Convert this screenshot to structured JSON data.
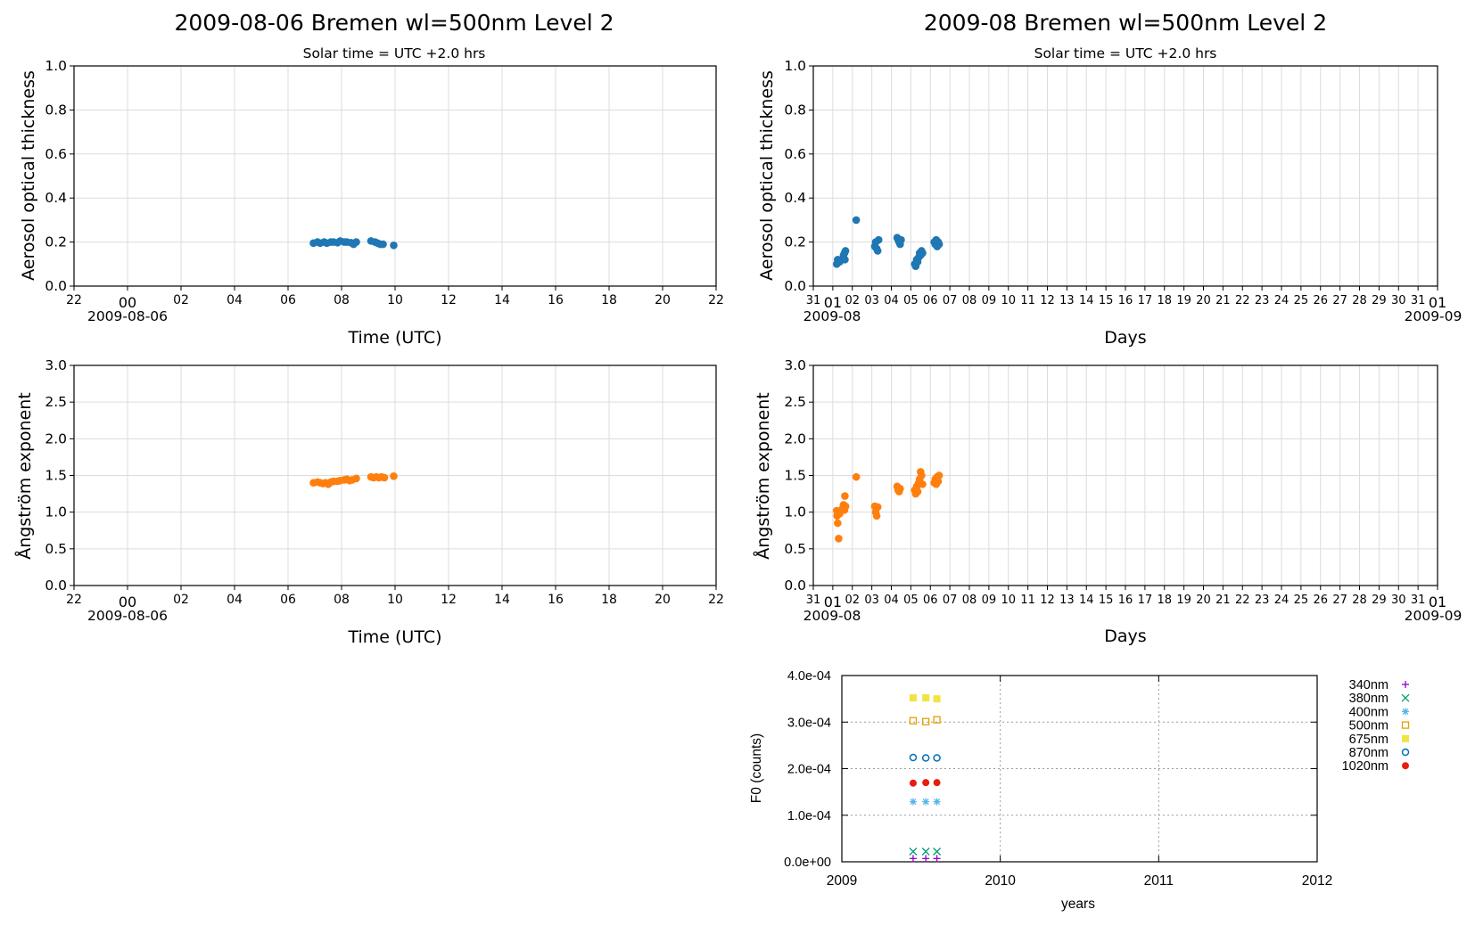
{
  "chart_data": [
    {
      "id": "aot_day",
      "type": "scatter",
      "title": "2009-08-06  Bremen  wl=500nm  Level 2",
      "subtitle": "Solar time = UTC +2.0 hrs",
      "xlabel": "Time (UTC)",
      "ylabel": "Aerosol optical thickness",
      "x_tick_labels": [
        "22",
        "00",
        "02",
        "04",
        "06",
        "08",
        "10",
        "12",
        "14",
        "16",
        "18",
        "20",
        "22"
      ],
      "x_secondary_label": "2009-08-06",
      "xlim_hours": [
        -2,
        22
      ],
      "ylim": [
        0,
        1.0
      ],
      "y_ticks": [
        "0.0",
        "0.2",
        "0.4",
        "0.6",
        "0.8",
        "1.0"
      ],
      "grid": true,
      "color": "#1f77b4",
      "series": [
        {
          "x": [
            6.95,
            7.1,
            7.2,
            7.35,
            7.45,
            7.6,
            7.7,
            7.85,
            7.95,
            8.1,
            8.2,
            8.35,
            8.45,
            8.55,
            9.1,
            9.25,
            9.35,
            9.45,
            9.55,
            9.95
          ],
          "y": [
            0.195,
            0.2,
            0.195,
            0.2,
            0.195,
            0.2,
            0.2,
            0.197,
            0.205,
            0.2,
            0.2,
            0.197,
            0.19,
            0.2,
            0.205,
            0.2,
            0.195,
            0.19,
            0.19,
            0.185
          ]
        }
      ]
    },
    {
      "id": "aot_month",
      "type": "scatter",
      "title": "2009-08  Bremen  wl=500nm  Level 2",
      "subtitle": "Solar time = UTC +2.0 hrs",
      "xlabel": "Days",
      "ylabel": "Aerosol optical thickness",
      "x_tick_labels": [
        "31",
        "01",
        "02",
        "03",
        "04",
        "05",
        "06",
        "07",
        "08",
        "09",
        "10",
        "11",
        "12",
        "13",
        "14",
        "15",
        "16",
        "17",
        "18",
        "19",
        "20",
        "21",
        "22",
        "23",
        "24",
        "25",
        "26",
        "27",
        "28",
        "29",
        "30",
        "31",
        "01"
      ],
      "x_secondary_left": "2009-08",
      "x_secondary_right": "2009-09",
      "xlim_days": [
        0,
        32
      ],
      "ylim": [
        0,
        1.0
      ],
      "y_ticks": [
        "0.0",
        "0.2",
        "0.4",
        "0.6",
        "0.8",
        "1.0"
      ],
      "grid": true,
      "color": "#1f77b4",
      "series": [
        {
          "x": [
            1.2,
            1.25,
            1.35,
            1.45,
            1.55,
            1.6,
            1.62,
            1.65,
            2.2,
            3.15,
            3.2,
            3.25,
            3.3,
            3.35,
            4.3,
            4.35,
            4.4,
            4.45,
            4.5,
            5.2,
            5.25,
            5.3,
            5.35,
            5.4,
            5.45,
            5.5,
            5.55,
            5.6,
            6.2,
            6.25,
            6.3,
            6.35,
            6.4,
            6.45
          ],
          "y": [
            0.1,
            0.12,
            0.11,
            0.12,
            0.14,
            0.15,
            0.12,
            0.16,
            0.3,
            0.18,
            0.2,
            0.17,
            0.16,
            0.21,
            0.22,
            0.21,
            0.2,
            0.19,
            0.21,
            0.1,
            0.09,
            0.12,
            0.11,
            0.13,
            0.15,
            0.14,
            0.16,
            0.15,
            0.2,
            0.19,
            0.21,
            0.18,
            0.2,
            0.19
          ]
        }
      ]
    },
    {
      "id": "ae_day",
      "type": "scatter",
      "title": "",
      "xlabel": "Time (UTC)",
      "ylabel": "Ångström exponent",
      "x_tick_labels": [
        "22",
        "00",
        "02",
        "04",
        "06",
        "08",
        "10",
        "12",
        "14",
        "16",
        "18",
        "20",
        "22"
      ],
      "x_secondary_label": "2009-08-06",
      "xlim_hours": [
        -2,
        22
      ],
      "ylim": [
        0,
        3.0
      ],
      "y_ticks": [
        "0.0",
        "0.5",
        "1.0",
        "1.5",
        "2.0",
        "2.5",
        "3.0"
      ],
      "grid": true,
      "color": "#ff7f0e",
      "series": [
        {
          "x": [
            6.95,
            7.1,
            7.2,
            7.3,
            7.4,
            7.5,
            7.6,
            7.7,
            7.85,
            7.95,
            8.1,
            8.2,
            8.3,
            8.4,
            8.55,
            9.1,
            9.2,
            9.3,
            9.4,
            9.5,
            9.6,
            9.95
          ],
          "y": [
            1.4,
            1.41,
            1.4,
            1.39,
            1.4,
            1.38,
            1.41,
            1.42,
            1.42,
            1.43,
            1.44,
            1.45,
            1.43,
            1.44,
            1.46,
            1.48,
            1.47,
            1.48,
            1.47,
            1.48,
            1.47,
            1.49
          ]
        }
      ]
    },
    {
      "id": "ae_month",
      "type": "scatter",
      "title": "",
      "xlabel": "Days",
      "ylabel": "Ångström exponent",
      "x_tick_labels": [
        "31",
        "01",
        "02",
        "03",
        "04",
        "05",
        "06",
        "07",
        "08",
        "09",
        "10",
        "11",
        "12",
        "13",
        "14",
        "15",
        "16",
        "17",
        "18",
        "19",
        "20",
        "21",
        "22",
        "23",
        "24",
        "25",
        "26",
        "27",
        "28",
        "29",
        "30",
        "31",
        "01"
      ],
      "x_secondary_left": "2009-08",
      "x_secondary_right": "2009-09",
      "xlim_days": [
        0,
        32
      ],
      "ylim": [
        0,
        3.0
      ],
      "y_ticks": [
        "0.0",
        "0.5",
        "1.0",
        "1.5",
        "2.0",
        "2.5",
        "3.0"
      ],
      "grid": true,
      "color": "#ff7f0e",
      "series": [
        {
          "x": [
            1.2,
            1.22,
            1.25,
            1.28,
            1.3,
            1.35,
            1.5,
            1.55,
            1.6,
            1.62,
            1.65,
            2.2,
            3.15,
            3.2,
            3.25,
            3.3,
            4.3,
            4.35,
            4.4,
            4.45,
            5.2,
            5.25,
            5.3,
            5.35,
            5.4,
            5.45,
            5.5,
            5.55,
            5.6,
            6.2,
            6.25,
            6.3,
            6.35,
            6.4,
            6.45
          ],
          "y": [
            1.02,
            0.95,
            0.85,
            1.0,
            0.64,
            0.98,
            1.05,
            1.1,
            1.03,
            1.22,
            1.08,
            1.48,
            1.08,
            1.0,
            0.95,
            1.07,
            1.35,
            1.3,
            1.28,
            1.32,
            1.3,
            1.25,
            1.35,
            1.28,
            1.4,
            1.45,
            1.55,
            1.5,
            1.38,
            1.4,
            1.45,
            1.38,
            1.48,
            1.42,
            1.5
          ]
        }
      ]
    },
    {
      "id": "f0",
      "type": "scatter",
      "title": "",
      "xlabel": "years",
      "ylabel": "F0 (counts)",
      "x_ticks": [
        2009,
        2010,
        2011,
        2012
      ],
      "x_tick_labels": [
        "2009",
        "2010",
        "2011",
        "2012"
      ],
      "xlim": [
        2009,
        2012
      ],
      "ylim": [
        0,
        0.0004
      ],
      "y_ticks": [
        "0.0e+00",
        "1.0e-04",
        "2.0e-04",
        "3.0e-04",
        "4.0e-04"
      ],
      "grid": true,
      "legend_placement": "right",
      "series": [
        {
          "name": "340nm",
          "color": "#9400d3",
          "marker": "plus",
          "x": [
            2009.45,
            2009.53,
            2009.6
          ],
          "y": [
            7e-06,
            7e-06,
            7e-06
          ]
        },
        {
          "name": "380nm",
          "color": "#009e73",
          "marker": "cross",
          "x": [
            2009.45,
            2009.53,
            2009.6
          ],
          "y": [
            2.2e-05,
            2.2e-05,
            2.2e-05
          ]
        },
        {
          "name": "400nm",
          "color": "#56b4e9",
          "marker": "star",
          "x": [
            2009.45,
            2009.53,
            2009.6
          ],
          "y": [
            0.000129,
            0.000129,
            0.000129
          ]
        },
        {
          "name": "500nm",
          "color": "#e69f00",
          "marker": "open-square",
          "x": [
            2009.45,
            2009.53,
            2009.6
          ],
          "y": [
            0.000303,
            0.000301,
            0.000305
          ]
        },
        {
          "name": "675nm",
          "color": "#f0e442",
          "marker": "filled-square",
          "x": [
            2009.45,
            2009.53,
            2009.6
          ],
          "y": [
            0.000352,
            0.000352,
            0.00035
          ]
        },
        {
          "name": "870nm",
          "color": "#0072b2",
          "marker": "open-circle",
          "x": [
            2009.45,
            2009.53,
            2009.6
          ],
          "y": [
            0.000224,
            0.000223,
            0.000223
          ]
        },
        {
          "name": "1020nm",
          "color": "#e51e10",
          "marker": "filled-circle",
          "x": [
            2009.45,
            2009.53,
            2009.6
          ],
          "y": [
            0.000169,
            0.00017,
            0.00017
          ]
        }
      ]
    }
  ]
}
